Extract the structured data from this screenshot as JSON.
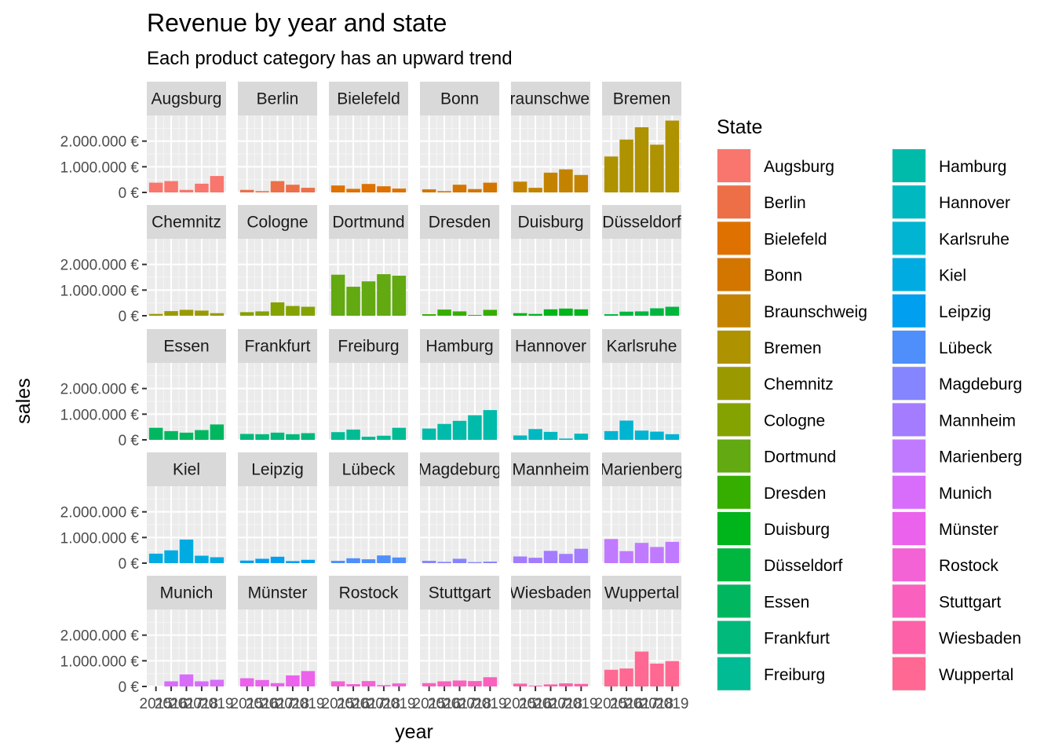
{
  "chart_data": {
    "type": "bar",
    "title": "Revenue by year and state",
    "subtitle": "Each product category has an upward trend",
    "xlabel": "year",
    "ylabel": "sales",
    "facet_by": "State",
    "x": [
      2015,
      2016,
      2017,
      2018,
      2019
    ],
    "x_tick_labels": [
      "2015",
      "2016",
      "2017",
      "2018",
      "2019"
    ],
    "ylim": [
      0,
      3000000
    ],
    "y_ticks": [
      0,
      1000000,
      2000000
    ],
    "y_tick_labels": [
      "0 €",
      "1.000.000 €",
      "2.000.000 €"
    ],
    "grid": true,
    "legend": {
      "title": "State",
      "position": "right"
    },
    "facets": [
      {
        "name": "Augsburg",
        "color": "#F8766D",
        "values": [
          380000,
          440000,
          100000,
          340000,
          640000
        ]
      },
      {
        "name": "Berlin",
        "color": "#EC6F47",
        "values": [
          100000,
          50000,
          440000,
          300000,
          180000
        ]
      },
      {
        "name": "Bielefeld",
        "color": "#DE7100",
        "values": [
          270000,
          140000,
          330000,
          240000,
          150000
        ]
      },
      {
        "name": "Bonn",
        "color": "#D27600",
        "values": [
          120000,
          50000,
          300000,
          130000,
          380000
        ]
      },
      {
        "name": "Braunschweig",
        "color": "#C38300",
        "values": [
          420000,
          180000,
          770000,
          900000,
          680000
        ]
      },
      {
        "name": "Bremen",
        "color": "#AE9200",
        "values": [
          1400000,
          2060000,
          2540000,
          1860000,
          2800000
        ]
      },
      {
        "name": "Chemnitz",
        "color": "#9A9A00",
        "values": [
          70000,
          180000,
          230000,
          200000,
          100000
        ]
      },
      {
        "name": "Cologne",
        "color": "#84A200",
        "values": [
          140000,
          170000,
          520000,
          380000,
          350000
        ]
      },
      {
        "name": "Dortmund",
        "color": "#62A912",
        "values": [
          1600000,
          1130000,
          1340000,
          1620000,
          1560000
        ]
      },
      {
        "name": "Dresden",
        "color": "#36AE00",
        "values": [
          60000,
          240000,
          170000,
          30000,
          230000
        ]
      },
      {
        "name": "Duisburg",
        "color": "#00B41B",
        "values": [
          100000,
          70000,
          250000,
          280000,
          250000
        ]
      },
      {
        "name": "Düsseldorf",
        "color": "#00B63F",
        "values": [
          60000,
          160000,
          170000,
          290000,
          350000
        ]
      },
      {
        "name": "Essen",
        "color": "#00B760",
        "values": [
          470000,
          340000,
          280000,
          380000,
          600000
        ]
      },
      {
        "name": "Frankfurt",
        "color": "#00B97B",
        "values": [
          230000,
          220000,
          280000,
          220000,
          260000
        ]
      },
      {
        "name": "Freiburg",
        "color": "#00BB94",
        "values": [
          300000,
          400000,
          120000,
          160000,
          470000
        ]
      },
      {
        "name": "Hamburg",
        "color": "#00BBAA",
        "values": [
          440000,
          620000,
          740000,
          960000,
          1160000
        ]
      },
      {
        "name": "Hannover",
        "color": "#00B8BF",
        "values": [
          170000,
          420000,
          310000,
          50000,
          240000
        ]
      },
      {
        "name": "Karlsruhe",
        "color": "#00B4D2",
        "values": [
          340000,
          750000,
          360000,
          320000,
          220000
        ]
      },
      {
        "name": "Kiel",
        "color": "#00ABE2",
        "values": [
          370000,
          500000,
          920000,
          290000,
          230000
        ]
      },
      {
        "name": "Leipzig",
        "color": "#009FF0",
        "values": [
          100000,
          170000,
          250000,
          80000,
          130000
        ]
      },
      {
        "name": "Lübeck",
        "color": "#4E8FFB",
        "values": [
          90000,
          190000,
          150000,
          300000,
          220000
        ]
      },
      {
        "name": "Magdeburg",
        "color": "#8585FF",
        "values": [
          90000,
          50000,
          170000,
          40000,
          60000
        ]
      },
      {
        "name": "Mannheim",
        "color": "#A37CFF",
        "values": [
          260000,
          210000,
          480000,
          360000,
          560000
        ]
      },
      {
        "name": "Marienberg",
        "color": "#C07AFF",
        "values": [
          940000,
          470000,
          790000,
          630000,
          830000
        ]
      },
      {
        "name": "Munich",
        "color": "#D86DFB",
        "values": [
          0,
          200000,
          470000,
          200000,
          260000
        ]
      },
      {
        "name": "Münster",
        "color": "#EB62EC",
        "values": [
          320000,
          250000,
          130000,
          430000,
          600000
        ]
      },
      {
        "name": "Rostock",
        "color": "#F463D5",
        "values": [
          200000,
          90000,
          210000,
          50000,
          120000
        ]
      },
      {
        "name": "Stuttgart",
        "color": "#FA61BE",
        "values": [
          130000,
          200000,
          230000,
          210000,
          360000
        ]
      },
      {
        "name": "Wiesbaden",
        "color": "#FD61A8",
        "values": [
          110000,
          30000,
          80000,
          120000,
          100000
        ]
      },
      {
        "name": "Wuppertal",
        "color": "#FF6892",
        "values": [
          650000,
          700000,
          1360000,
          890000,
          990000
        ]
      }
    ]
  }
}
